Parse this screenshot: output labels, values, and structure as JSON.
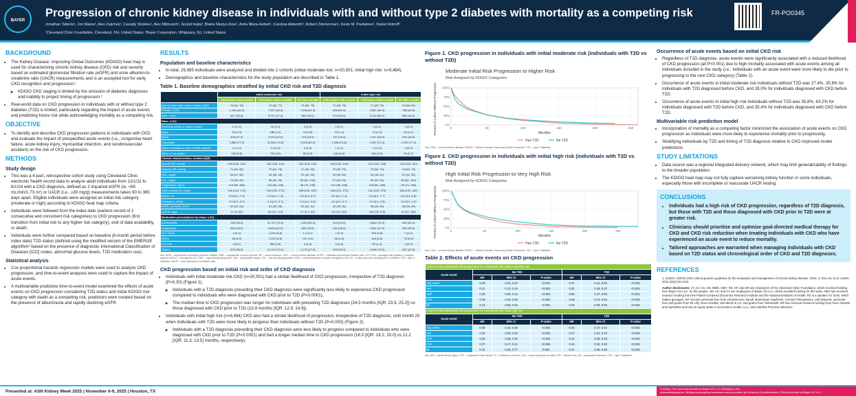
{
  "header": {
    "logo": "BAYER",
    "title": "Progression of chronic kidney disease in individuals with and without type 2 diabetes with mortality as a competing risk",
    "authors": "Jonathan Talleriio¹, Jon Mares², Alex Zajichek¹, Cassidy Shokles¹, Alex Milinovich¹, Arvind Katta², Blaine Martyn-Dow¹, Anita Misra-Hebert¹, Carolina Aldworth², Robert Zimmerman¹, Kevin M. Pantalone¹, Daniel Rotroff¹",
    "affiliations": "¹Cleveland Clinic Foundation, Cleveland, OH, United States; ²Bayer Corporation, Whippany, NJ, United States",
    "poster_code": "FR-PO0345"
  },
  "background": {
    "heading": "BACKGROUND",
    "b1": "The Kidney Disease: Improving Global Outcomes (KDIGO) heat map is used for characterizing chronic kidney disease (CKD) risk and severity based on estimated glomerular filtration rate (eGFR) and urine albumin-to-creatinine ratio (UACR) measurements and is an accepted tool for early CKD recognition and progression.¹",
    "b1a": "KDIGO CKD staging is limited by the omission of diabetes diagnoses and inability to project timing of progression.¹",
    "b2": "Real-world data on CKD progression in individuals with or without type 2 diabetes (T2D) is limited, particularly regarding the impact of acute events and predicting future risk while acknowledging mortality as a competing risk."
  },
  "objective": {
    "heading": "OBJECTIVE",
    "b1": "To identify and describe CKD progression patterns in individuals with CKD and evaluate the impact of prespecified acute events (i.e., congestive heart failure, acute kidney injury, myocardial infarction, and cerebrovascular accident) on the risk of CKD progression."
  },
  "methods": {
    "heading": "METHODS",
    "study_design": "Study design",
    "b1": "This was a 4-part, retrospective cohort study using Cleveland Clinic electronic health record data to analyze adult individuals from 12/1/11 to 8/1/24 with a CKD diagnosis, defined as 2 impaired eGFR (ie, <60 mL/min/1.73 m²) or UACR (i.e., ≥30 mg/g) measurements taken 90 to 365 days apart. Eligible individuals were assigned an initial risk category (moderate or high) according to KDIGO heat map criteria.",
    "b2": "Individuals were followed from the index date (earliest record of 2 consecutive and consistent risk categories) to CKD progression (first transition from initial risk to any higher risk category), end of data availability, or death.",
    "b3": "Individuals were further compared based on baseline (6-month period before index date) T2D status (defined using the modified version of the EMERGE algorithm² based on the presence of diagnostic International Classification of Diseases [ICD] codes, abnormal glucose levels, T2D medication use).",
    "stat": "Statistical analysis",
    "b4": "Cox proportional hazards regression models were used to analyze CKD progression, and time-to-event analyses were used to capture the impact of acute events.",
    "b5": "A multivariable predictive time-to-event model examined the effects of acute events on CKD progression considering T2D status and initial KDIGO risk category with death as a competing risk; predictors were created based on the presence of albuminuria and rapidly declining eGFR."
  },
  "results": {
    "heading": "RESULTS",
    "sub": "Population and baseline characteristics",
    "b1": "In total, 29,985 individuals were analyzed and divided into 2 cohorts (initial moderate risk: n=20,501; initial high risk: n=9,484).",
    "b2": "Demographics and baseline characteristics for the study population are described in Table 1.",
    "table1_title": "Table 1. Baseline demographics stratified by initial CKD risk and T2D diagnosis",
    "groups": [
      "Initial moderate risk",
      "Initial high risk"
    ],
    "cols": [
      "CKD before T2D n=2,434",
      "T2D before CKD n=15,581",
      "No T2D n=2,486",
      "CKD before T2D n=1,614",
      "T2D before CKD n=6,258",
      "No T2D n=1,602"
    ],
    "rows1": [
      [
        "Age at index date, years, median (IQR)",
        "70 (64, 76)",
        "70 (63, 77)",
        "72 (65, 79)",
        "72 (65, 79)",
        "71 (63, 79)",
        "75 (66, 82)"
      ],
      [
        "Female, n (%)",
        "1,184 (49.0)",
        "7,537 (48.0)",
        "1,258 (51.0)",
        "825 (51.0)",
        "3,087 (49.0)",
        "788 (49.0)"
      ],
      [
        "Died, n (%)",
        "607 (25.0)",
        "5,791 (37.0)",
        "883 (36.0)",
        "570 (35.0)",
        "3,110 (50.0)",
        "685 (43.0)"
      ]
    ],
    "race_label": "Race, n (%)",
    "rows_race": [
      [
        "American Indian or Alaska Native",
        "1 (<0.1)",
        "16 (0.1)",
        "0 (0.0)",
        "2 (0.1)",
        "4 (0.1)",
        "3 (0.2)"
      ],
      [
        "Asian",
        "25 (1.0)",
        "186 (1.2)",
        "19 (0.8)",
        "22 (1.4)",
        "74 (1.2)",
        "18 (1.1)"
      ],
      [
        "Black",
        "405 (17.0)",
        "3,070 (20.0)",
        "373 (15.0)",
        "297 (18.0)",
        "1,447 (23.0)",
        "290 (18.0)"
      ],
      [
        "Caucasian",
        "1,868 (77.0)",
        "11,582 (74.0)",
        "2,008 (81.0)",
        "1,188 (73.6)",
        "4,437 (71.0)",
        "1,232 (77.0)"
      ],
      [
        "Native Hawaiian or other Pacific Islander",
        "1 (<0.1)",
        "2 (<0.1)",
        "0 (0.0)",
        "1 (0.1)",
        "2 (<0.1)",
        "0 (0.0)"
      ],
      [
        "Other or not stated",
        "134 (6.0)",
        "725 (5.0)",
        "89 (3.6)",
        "104 (6.4)",
        "304 (4.9)",
        "59 (3.7)"
      ]
    ],
    "clin_label": "Clinical characteristics, median (IQR)",
    "rows_clin": [
      [
        "Systolic BP, mmHg",
        "130 (120, 141)",
        "130 (118, 141)",
        "130 (118, 142)",
        "130 (120, 144)",
        "131 (120, 145)",
        "130 (118, 142)"
      ],
      [
        "Diastolic BP, mmHg",
        "71 (64, 80)",
        "70 (61, 78)",
        "71 (63, 80)",
        "70 (62, 79)",
        "70 (60, 78)",
        "70 (62, 79)"
      ],
      [
        "HDL, mg/dL",
        "46 (37, 55)",
        "44 (36, 55)",
        "51 (42, 64)",
        "44 (36, 55)",
        "43 (35, 54)",
        "51 (41, 63)"
      ],
      [
        "LDL, mg/dL",
        "72 (55, 93)",
        "69 (52, 90)",
        "82 (62, 104)",
        "71 (53, 93)",
        "69 (51, 90)",
        "80 (61, 104)"
      ],
      [
        "Triglyceride, mg/dL",
        "119 (86, 165)",
        "116 (83, 166)",
        "98 (73, 136)",
        "121 (85, 168)",
        "115 (81, 166)",
        "96 (74, 138)"
      ],
      [
        "Total cholesterol, mg/dL",
        "146 (124, 174)",
        "143 (120, 170)",
        "158 (133, 187)",
        "146 (122, 172)",
        "141 (118, 170)",
        "158 (132, 187)"
      ],
      [
        "HbA1c, %",
        "6.5 (6.0, 7.3)",
        "6.9 (6.2, 7.8)",
        "5.6 (5.4, 5.9)",
        "6.5 (6.0, 7.4)",
        "6.8 (6.1, 7.7)",
        "5.6 (5.4, 5.9)"
      ],
      [
        "Potassium, mEq/L",
        "4.3 (4.0, 4.7)",
        "4.4 (4.0, 4.7)",
        "4.3 (4.0, 4.6)",
        "4.4 (4.0, 4.7)",
        "4.4 (4.1, 4.8)",
        "4.4 (4.0, 4.7)"
      ],
      [
        "eGFR, mL/min/1.73 m²",
        "52 (42, 63)",
        "51 (39, 65)",
        "50 (42, 61)",
        "40 (30, 50)",
        "38 (26, 50)",
        "38 (26, 49)"
      ],
      [
        "UACR, mg/g",
        "27 (5, 85)",
        "50 (14, 173)",
        "17 (0.1, 62)",
        "62 (20, 243)",
        "105 (29, 476)",
        "41 (11, 153)"
      ]
    ],
    "med_label": "Medication prescriptions by class, n (%)",
    "rows_med": [
      [
        "ACEis/ARBs",
        "918 (38.0)",
        "11,727 (75.0)",
        "1,284 (52.0)",
        "519 (32.0)",
        "4,644 (74.0)",
        "823 (51.0)"
      ],
      [
        "Antiplatelets",
        "690 (28.0)",
        "6,895 (44.0)",
        "800 (33.0)",
        "451 (28.0)",
        "2,951 (47.0)",
        "525 (33.0)"
      ],
      [
        "GLP-1RAs",
        "3 (0.1)",
        "1,021 (6.6)",
        "1 (<0.1)",
        "7 (0.4)",
        "302 (4.8)",
        "1 (0.1)"
      ],
      [
        "MRAs",
        "98 (4.0)",
        "1,022 (6.6)",
        "107 (4.3)",
        "65 (4.0)",
        "416 (6.6)",
        "78 (4.9)"
      ],
      [
        "SGLT2is",
        "3 (0.1)",
        "383 (2.5)",
        "0 (0.0)",
        "0 (0.0)",
        "82 (1.3)",
        "0 (0.0)"
      ],
      [
        "Statins",
        "879 (36.0)",
        "11,194 (72.0)",
        "1,176 (47.0)",
        "529 (33.0)",
        "4,408 (70.0)",
        "687 (43.0)"
      ]
    ],
    "table1_key": "Key: ACEi – angiotensin-converting enzyme inhibitor; ARB – angiotensin receptor blocker; BP – blood pressure; CKD – chronic kidney disease; eGFR – estimated glomerular filtration rate; GLP-1RA – glucagon-like peptide-1 receptor agonist; HbA1c – hemoglobin A1c; HDL – high-density lipoprotein; IQR – interquartile range; LDL – low-density lipoprotein; MRA – mineralocorticoid receptor antagonist; SGLT2i – sodium glucose cotransporter-2 inhibitor; T2D – type 2 diabetes; UACR – urine albumin-to-creatinine ratio.",
    "sub2": "CKD progression based on initial risk and order of CKD diagnosis",
    "p1": "Individuals with initial moderate risk CKD (n=20,501) had a similar likelihood of CKD progression, irrespective of T2D diagnosis (P=0.30) (Figure 1).",
    "p1a": "Individuals with a T2D diagnosis preceding their CKD diagnosis were significantly less likely to experience CKD progression compared to individuals who were diagnosed with CKD prior to T2D (P<0.0001).",
    "p1b": "The median time to CKD progression was longer for individuals with preceding T2D diagnoses (24.5 months [IQR: 23.9, 25.2]) vs those diagnosed with CKD prior to T2D (13.9 months [IQR: 12.9, 14.9]).",
    "p2": "Individuals with initial high risk (n=9,484) CKD also had a similar likelihood of progression, irrespective of T2D diagnosis, until month 25 when individuals with T2D were more likely to progress than individuals without T2D (P=0.003) (Figure 2).",
    "p2a": "Individuals with a T2D diagnosis preceding their CKD diagnosis were less likely to progress compared to individuals who were diagnosed with CKD prior to T2D (P<0.0001) and had a longer median time to CKD progression (18.9 [IQR: 18.2, 20.0] vs 12.2 [IQR: 11.3, 13.5] months, respectively)."
  },
  "figures": {
    "fig1_caption": "Figure 1. CKD progression in individuals with initial moderate risk (individuals with T2D vs without T2D)",
    "fig2_caption": "Figure 2. CKD progression in individuals with initial high risk (individuals with T2D vs without T2D)",
    "key": "Key: CKD – chronic kidney disease; KDIGO – Kidney Disease: Improving Global Outcomes; T2D – type 2 diabetes."
  },
  "chart_data": [
    {
      "type": "line",
      "title": "Moderate Initial Risk Progression to Higher Risk",
      "subtitle": "Risk Assigned by KDIGO Categories",
      "xlabel": "Months",
      "ylabel": "Percent of Cohort Without Progression",
      "xlim": [
        0,
        260
      ],
      "ylim": [
        0,
        100
      ],
      "xticks": [
        "0",
        "50",
        "100",
        "150",
        "200",
        "250"
      ],
      "yticks": [
        "0%",
        "25%",
        "50%",
        "75%",
        "100%"
      ],
      "grid": true,
      "legend": "bottom",
      "colors": [
        "#f08080",
        "#20c5c5"
      ],
      "series": [
        {
          "name": "Has T2D",
          "x": [
            0,
            5,
            10,
            20,
            30,
            50,
            75,
            100,
            150,
            200,
            260
          ],
          "y": [
            100,
            80,
            68,
            50,
            40,
            27,
            18,
            12,
            5,
            2,
            0
          ]
        },
        {
          "name": "No T2D",
          "x": [
            0,
            5,
            10,
            20,
            30,
            50,
            75,
            100,
            150,
            200,
            228
          ],
          "y": [
            100,
            70,
            58,
            45,
            38,
            27,
            19,
            14,
            8,
            5,
            4
          ]
        }
      ]
    },
    {
      "type": "line",
      "title": "High Initial Risk Progression to Very High Risk",
      "subtitle": "Risk Assigned by KDIGO Categories",
      "xlabel": "Months",
      "ylabel": "Percent of Cohort Without Progression",
      "xlim": [
        0,
        280
      ],
      "ylim": [
        0,
        100
      ],
      "xticks": [
        "0",
        "50",
        "100",
        "150",
        "200",
        "250"
      ],
      "yticks": [
        "0%",
        "25%",
        "50%",
        "75%",
        "100%"
      ],
      "grid": true,
      "legend": "bottom",
      "colors": [
        "#f08080",
        "#20c5c5"
      ],
      "series": [
        {
          "name": "Has T2D",
          "x": [
            0,
            10,
            20,
            30,
            50,
            75,
            100,
            150,
            200,
            250
          ],
          "y": [
            100,
            62,
            47,
            38,
            26,
            16,
            10,
            4,
            2,
            1
          ]
        },
        {
          "name": "No T2D",
          "x": [
            0,
            10,
            20,
            30,
            50,
            75,
            100,
            150,
            200,
            280
          ],
          "y": [
            100,
            63,
            49,
            41,
            31,
            22,
            16,
            8,
            5,
            4
          ]
        }
      ]
    }
  ],
  "table2": {
    "title": "Table 2. Effects of acute events on CKD progression",
    "sec1": "Acute events associated with progression for individuals with initial moderate risk",
    "sec2": "Acute events associated with progression for individuals with initial high risk",
    "event_label": "Acute event",
    "groups": [
      "No T2D",
      "T2D"
    ],
    "cols": [
      "HR",
      "95% CI",
      "P-value",
      "HR",
      "95% CI",
      "P-value"
    ],
    "rows1": [
      [
        "Any event",
        "0.29",
        "0.25, 0.33",
        "<0.001",
        "0.47",
        "0.44, 0.50",
        "<0.001"
      ],
      [
        "AKI",
        "0.21",
        "0.13, 0.34",
        "<0.001",
        "0.32",
        "0.28, 0.37",
        "<0.001"
      ],
      [
        "CHF",
        "0.35",
        "0.28, 0.43",
        "<0.001",
        "0.50",
        "0.47, 0.55",
        "<0.001"
      ],
      [
        "CVA",
        "0.28",
        "0.20, 0.39",
        "<0.001",
        "0.49",
        "0.44, 0.54",
        "<0.001"
      ],
      [
        "MI",
        "0.13",
        "0.05, 0.33",
        "<0.001",
        "0.45",
        "0.38, 0.55",
        "<0.001"
      ]
    ],
    "rows2": [
      [
        "Any event",
        "0.29",
        "0.23, 0.35",
        "<0.001",
        "0.40",
        "0.37, 0.43",
        "<0.001"
      ],
      [
        "AKI",
        "0.16",
        "0.09, 0.28",
        "<0.001",
        "0.27",
        "0.22, 0.33",
        "<0.001"
      ],
      [
        "CHF",
        "0.36",
        "0.28, 0.45",
        "<0.001",
        "0.44",
        "0.39, 0.49",
        "<0.001"
      ],
      [
        "CVA",
        "0.27",
        "0.17, 0.41",
        "<0.001",
        "0.40",
        "0.34, 0.48",
        "<0.001"
      ],
      [
        "MI",
        "0.44",
        "0.25, 0.77",
        "0.004",
        "0.47",
        "0.38, 0.60",
        "<0.001"
      ]
    ],
    "key": "Key: AKI – acute kidney injury; CHF – congestive heart failure; CI – confidence interval; CVA – cerebrovascular accident; HR – hazard ratio; MI – myocardial infarction; T2D – type 2 diabetes."
  },
  "acute": {
    "heading": "Occurrence of acute events based on initial CKD risk",
    "b1": "Regardless of T2D diagnosis, acute events were significantly associated with a reduced likelihood of CKD progression (all P<0.001) due to high mortality associated with acute events among all individuals included in the study (i.e., individuals with an acute event were more likely to die prior to progressing to the next CKD category) (Table 2).",
    "b2": "Occurrence of acute events in initial moderate risk individuals without T2D was 27.4%, 35.8% for individuals with T2D diagnosed before CKD, and 28.0% for individuals diagnosed with CKD before T2D.",
    "b3": "Occurrence of acute events in initial high risk individuals without T2D was 35.8%, 43.2% for individuals diagnosed with T2D before CKD, and 35.4% for individuals diagnosed with CKD before T2D.",
    "model_heading": "Multivariable risk prediction model",
    "b4": "Incorporation of mortality as a competing factor minimized the association of acute events on CKD progression as individuals were more likely to experience mortality prior to progressing.",
    "b5": "Stratifying individuals by T2D and timing of T2D diagnosis relative to CKD improved model predictions."
  },
  "limitations": {
    "heading": "STUDY LIMITATIONS",
    "b1": "Data source was a regional integrated delivery network, which may limit generalizability of findings to the broader population.",
    "b2": "The KDIGO heat map may not fully capture worsening kidney function in some individuals, especially those with incomplete or inaccurate UACR testing."
  },
  "conclusions": {
    "heading": "CONCLUSIONS",
    "b1": "Individuals had a high risk of CKD progression, regardless of T2D diagnosis, but those with T2D and those diagnosed with CKD prior to T2D were at greater risk.",
    "b2": "Clinicians should prioritize and optimize goal-directed medical therapy for CKD and CKD risk reduction when treating individuals with CKD who have experienced an acute event to reduce mortality.",
    "b3": "Tailored approaches are warranted when managing individuals with CKD based on T2D status and chronological order of CKD and T2D diagnoses."
  },
  "references": {
    "heading": "REFERENCES",
    "text": "1. KDIGO. KDIGO 2024 clinical practice guideline for the evaluation and management of chronic kidney disease. 2024. 2. Kho AN, et al. JAMIA. 2012;19(2):212-218.",
    "disclosures_label": "Author disclosures:",
    "disclosures": "JT, AZ, CS, AM, BMD, AMH, RZ, KP, and DR are employees of the Cleveland Clinic Foundation, which received funding from Bayer US LLC. for this project. JM, AK, and CA are employees of Bayer US LLC, which provided funding for this work. AMH has received research funding from the Patient-Centered Outcomes Research Institute and the National Institutes of Health. RZ is a speaker for Xeris, which makes glucagon. KP receives personal fees from AstraZeneca, Sanofi, Boehringer Ingelheim, Corcept Therapeutics, and Diasome, personal fees and grants from Eli Lilly, Novo Nordisk, and Merck & Co, and grants from Twinhealth. DR has received research funding from Novo Nordisk and OpenDNA and has an equity stake in Genovation Health, LLC, and Clarified Precision Medicine."
  },
  "footer": {
    "presented": "Presented at: ASN Kidney Week 2025 | November 6-9, 2025 | Houston, TX",
    "funding": "Funding: This work was funded by Bayer US LLC (Whippany, NJ).",
    "ack": "Acknowledgements: Writing and graphical assistance were provided by Genicore (Conshohocken, PA) and funded by Bayer US LLC."
  }
}
